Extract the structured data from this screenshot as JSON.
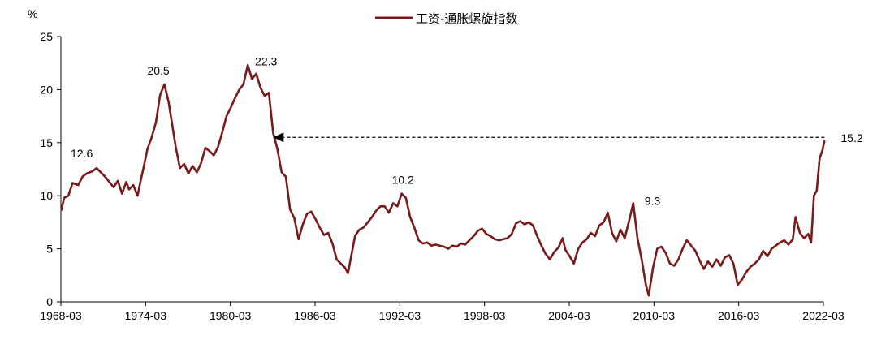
{
  "chart_data": {
    "type": "line",
    "unit_label": "%",
    "legend": "工资-通胀螺旋指数",
    "series": [
      {
        "name": "工资-通胀螺旋指数",
        "color": "#7b1a1a",
        "points": [
          [
            1968.2,
            8.6
          ],
          [
            1968.4,
            9.8
          ],
          [
            1968.7,
            10.0
          ],
          [
            1969.0,
            11.2
          ],
          [
            1969.4,
            11.0
          ],
          [
            1969.7,
            11.8
          ],
          [
            1970.0,
            12.1
          ],
          [
            1970.4,
            12.3
          ],
          [
            1970.7,
            12.6
          ],
          [
            1971.0,
            12.2
          ],
          [
            1971.3,
            11.8
          ],
          [
            1971.6,
            11.3
          ],
          [
            1971.9,
            10.8
          ],
          [
            1972.2,
            11.4
          ],
          [
            1972.5,
            10.2
          ],
          [
            1972.8,
            11.3
          ],
          [
            1973.0,
            10.6
          ],
          [
            1973.3,
            11.0
          ],
          [
            1973.6,
            10.0
          ],
          [
            1973.8,
            11.3
          ],
          [
            1974.0,
            12.5
          ],
          [
            1974.3,
            14.4
          ],
          [
            1974.6,
            15.5
          ],
          [
            1974.9,
            16.9
          ],
          [
            1975.2,
            19.5
          ],
          [
            1975.5,
            20.5
          ],
          [
            1975.8,
            18.8
          ],
          [
            1976.1,
            16.3
          ],
          [
            1976.3,
            14.6
          ],
          [
            1976.6,
            12.6
          ],
          [
            1976.9,
            13.0
          ],
          [
            1977.2,
            12.1
          ],
          [
            1977.5,
            12.8
          ],
          [
            1977.8,
            12.2
          ],
          [
            1978.1,
            13.1
          ],
          [
            1978.4,
            14.5
          ],
          [
            1978.7,
            14.2
          ],
          [
            1979.0,
            13.8
          ],
          [
            1979.3,
            14.6
          ],
          [
            1979.6,
            16.0
          ],
          [
            1979.9,
            17.5
          ],
          [
            1980.2,
            18.3
          ],
          [
            1980.5,
            19.2
          ],
          [
            1980.8,
            20.0
          ],
          [
            1981.1,
            20.5
          ],
          [
            1981.4,
            22.3
          ],
          [
            1981.7,
            21.0
          ],
          [
            1982.0,
            21.5
          ],
          [
            1982.3,
            20.2
          ],
          [
            1982.6,
            19.4
          ],
          [
            1982.9,
            19.7
          ],
          [
            1983.2,
            15.9
          ],
          [
            1983.5,
            14.4
          ],
          [
            1983.8,
            12.2
          ],
          [
            1984.1,
            11.8
          ],
          [
            1984.4,
            8.7
          ],
          [
            1984.7,
            7.9
          ],
          [
            1985.0,
            5.9
          ],
          [
            1985.3,
            7.3
          ],
          [
            1985.6,
            8.3
          ],
          [
            1985.9,
            8.5
          ],
          [
            1986.2,
            7.8
          ],
          [
            1986.5,
            7.0
          ],
          [
            1986.8,
            6.3
          ],
          [
            1987.1,
            6.5
          ],
          [
            1987.4,
            5.5
          ],
          [
            1987.7,
            4.0
          ],
          [
            1988.0,
            3.6
          ],
          [
            1988.3,
            3.2
          ],
          [
            1988.5,
            2.7
          ],
          [
            1988.8,
            4.8
          ],
          [
            1989.0,
            6.2
          ],
          [
            1989.3,
            6.8
          ],
          [
            1989.6,
            7.0
          ],
          [
            1989.9,
            7.5
          ],
          [
            1990.2,
            8.0
          ],
          [
            1990.5,
            8.6
          ],
          [
            1990.8,
            9.0
          ],
          [
            1991.1,
            9.0
          ],
          [
            1991.4,
            8.4
          ],
          [
            1991.7,
            9.3
          ],
          [
            1992.0,
            9.0
          ],
          [
            1992.3,
            10.2
          ],
          [
            1992.6,
            9.8
          ],
          [
            1992.9,
            8.0
          ],
          [
            1993.2,
            7.0
          ],
          [
            1993.5,
            5.8
          ],
          [
            1993.8,
            5.5
          ],
          [
            1994.1,
            5.6
          ],
          [
            1994.4,
            5.3
          ],
          [
            1994.7,
            5.4
          ],
          [
            1995.0,
            5.3
          ],
          [
            1995.3,
            5.2
          ],
          [
            1995.6,
            5.0
          ],
          [
            1995.9,
            5.3
          ],
          [
            1996.2,
            5.2
          ],
          [
            1996.5,
            5.5
          ],
          [
            1996.8,
            5.4
          ],
          [
            1997.1,
            5.8
          ],
          [
            1997.4,
            6.2
          ],
          [
            1997.7,
            6.7
          ],
          [
            1998.0,
            6.9
          ],
          [
            1998.3,
            6.4
          ],
          [
            1998.6,
            6.2
          ],
          [
            1998.9,
            5.9
          ],
          [
            1999.2,
            5.8
          ],
          [
            1999.5,
            5.9
          ],
          [
            1999.8,
            6.0
          ],
          [
            2000.1,
            6.4
          ],
          [
            2000.4,
            7.4
          ],
          [
            2000.7,
            7.6
          ],
          [
            2001.0,
            7.3
          ],
          [
            2001.3,
            7.5
          ],
          [
            2001.6,
            7.2
          ],
          [
            2001.9,
            6.2
          ],
          [
            2002.2,
            5.3
          ],
          [
            2002.5,
            4.5
          ],
          [
            2002.8,
            4.0
          ],
          [
            2003.1,
            4.7
          ],
          [
            2003.4,
            5.1
          ],
          [
            2003.7,
            6.0
          ],
          [
            2003.9,
            4.9
          ],
          [
            2004.2,
            4.3
          ],
          [
            2004.5,
            3.6
          ],
          [
            2004.8,
            5.0
          ],
          [
            2005.1,
            5.6
          ],
          [
            2005.4,
            5.9
          ],
          [
            2005.7,
            6.5
          ],
          [
            2006.0,
            6.2
          ],
          [
            2006.3,
            7.2
          ],
          [
            2006.6,
            7.5
          ],
          [
            2006.9,
            8.4
          ],
          [
            2007.2,
            6.5
          ],
          [
            2007.5,
            5.7
          ],
          [
            2007.8,
            6.8
          ],
          [
            2008.1,
            6.0
          ],
          [
            2008.4,
            7.6
          ],
          [
            2008.7,
            9.3
          ],
          [
            2009.0,
            6.0
          ],
          [
            2009.3,
            4.0
          ],
          [
            2009.6,
            1.6
          ],
          [
            2009.8,
            0.6
          ],
          [
            2010.1,
            3.2
          ],
          [
            2010.4,
            5.0
          ],
          [
            2010.7,
            5.2
          ],
          [
            2011.0,
            4.6
          ],
          [
            2011.3,
            3.6
          ],
          [
            2011.6,
            3.4
          ],
          [
            2011.9,
            4.0
          ],
          [
            2012.2,
            5.0
          ],
          [
            2012.5,
            5.8
          ],
          [
            2012.8,
            5.3
          ],
          [
            2013.1,
            4.8
          ],
          [
            2013.4,
            3.9
          ],
          [
            2013.7,
            3.1
          ],
          [
            2014.0,
            3.8
          ],
          [
            2014.3,
            3.3
          ],
          [
            2014.6,
            4.0
          ],
          [
            2014.9,
            3.4
          ],
          [
            2015.2,
            4.2
          ],
          [
            2015.5,
            4.4
          ],
          [
            2015.8,
            3.6
          ],
          [
            2016.1,
            1.6
          ],
          [
            2016.4,
            2.1
          ],
          [
            2016.7,
            2.8
          ],
          [
            2017.0,
            3.3
          ],
          [
            2017.3,
            3.6
          ],
          [
            2017.6,
            4.0
          ],
          [
            2017.9,
            4.8
          ],
          [
            2018.2,
            4.3
          ],
          [
            2018.5,
            5.0
          ],
          [
            2018.8,
            5.3
          ],
          [
            2019.1,
            5.6
          ],
          [
            2019.4,
            5.8
          ],
          [
            2019.7,
            5.4
          ],
          [
            2020.0,
            5.9
          ],
          [
            2020.2,
            8.0
          ],
          [
            2020.5,
            6.5
          ],
          [
            2020.8,
            6.0
          ],
          [
            2021.1,
            6.4
          ],
          [
            2021.3,
            5.6
          ],
          [
            2021.5,
            10.0
          ],
          [
            2021.7,
            10.5
          ],
          [
            2021.9,
            13.5
          ],
          [
            2022.1,
            14.3
          ],
          [
            2022.25,
            15.2
          ]
        ]
      }
    ],
    "x_ticks": [
      "1968-03",
      "1974-03",
      "1980-03",
      "1986-03",
      "1992-03",
      "1998-03",
      "2004-03",
      "2010-03",
      "2016-03",
      "2022-03"
    ],
    "x_tick_values": [
      1968.17,
      1974.17,
      1980.17,
      1986.17,
      1992.17,
      1998.17,
      2004.17,
      2010.17,
      2016.17,
      2022.17
    ],
    "xlim": [
      1968.17,
      2022.17
    ],
    "y_ticks": [
      0,
      5,
      10,
      15,
      20,
      25
    ],
    "y_tick_labels": [
      "0",
      "5",
      "10",
      "15",
      "20",
      "25"
    ],
    "ylim": [
      0,
      25
    ],
    "annotations": [
      {
        "text": "12.6",
        "x": 1970.7,
        "y": 12.6
      },
      {
        "text": "20.5",
        "x": 1975.5,
        "y": 20.5
      },
      {
        "text": "22.3",
        "x": 1981.4,
        "y": 22.3
      },
      {
        "text": "10.2",
        "x": 1992.3,
        "y": 10.2
      },
      {
        "text": "9.3",
        "x": 2008.7,
        "y": 9.3
      },
      {
        "text": "15.2",
        "x": 2022.25,
        "y": 15.2
      }
    ],
    "reference_arrow": {
      "from_x": 2022.25,
      "to_x": 1983.2,
      "y": 15.5
    },
    "grid": false,
    "legend_position": "top-center"
  }
}
